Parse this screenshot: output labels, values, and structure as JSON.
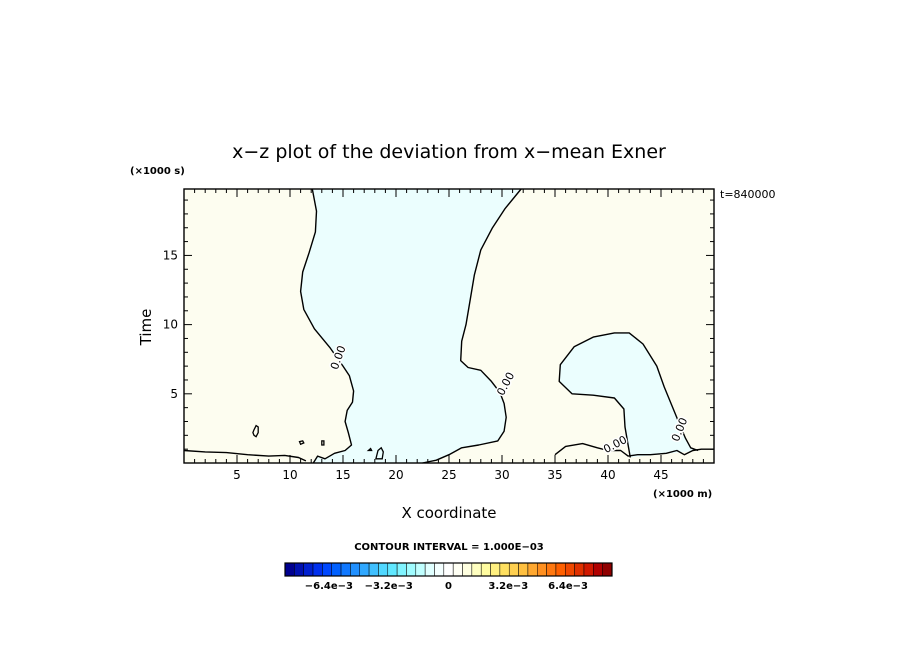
{
  "chart_data": {
    "type": "contour",
    "title": "x−z plot of the deviation from x−mean Exner",
    "xlabel": "X coordinate",
    "ylabel": "Time",
    "x_unit_label": "(×1000 m)",
    "y_unit_label": "(×1000 s)",
    "time_label": "t=840000",
    "contour_interval_label": "CONTOUR INTERVAL = 1.000E−03",
    "xlim": [
      0,
      50
    ],
    "ylim": [
      0,
      19.8
    ],
    "x_ticks": [
      5,
      10,
      15,
      20,
      25,
      30,
      35,
      40,
      45
    ],
    "y_ticks": [
      5,
      10,
      15
    ],
    "x_tick_labels": [
      "5",
      "10",
      "15",
      "20",
      "25",
      "30",
      "35",
      "40",
      "45"
    ],
    "y_tick_labels": [
      "5",
      "10",
      "15"
    ],
    "contour_level_label": "0.00",
    "contour_labels": [
      {
        "x": 14.6,
        "y": 7.6
      },
      {
        "x": 30.4,
        "y": 5.7
      },
      {
        "x": 40.7,
        "y": 1.3
      },
      {
        "x": 46.8,
        "y": 2.4
      }
    ],
    "contours": [
      [
        [
          0,
          0.9
        ],
        [
          2,
          0.8
        ],
        [
          4,
          0.75
        ],
        [
          6,
          0.6
        ],
        [
          8,
          0.5
        ],
        [
          9.5,
          0.55
        ],
        [
          10.8,
          0.4
        ],
        [
          11.5,
          0.15
        ]
      ],
      [
        [
          12.2,
          0
        ],
        [
          12.6,
          0.5
        ],
        [
          13.3,
          0.3
        ],
        [
          14.2,
          0.7
        ],
        [
          15.2,
          0.9
        ],
        [
          15.8,
          1.3
        ],
        [
          15.5,
          2.2
        ],
        [
          15.2,
          3.0
        ],
        [
          15.4,
          3.8
        ],
        [
          15.9,
          4.4
        ],
        [
          16.0,
          5.2
        ],
        [
          15.6,
          6.3
        ],
        [
          15.0,
          7.0
        ],
        [
          13.8,
          8.3
        ],
        [
          12.3,
          9.7
        ],
        [
          11.3,
          11.1
        ],
        [
          11.0,
          12.4
        ],
        [
          11.2,
          13.8
        ],
        [
          11.8,
          15.2
        ],
        [
          12.4,
          16.7
        ],
        [
          12.5,
          18.2
        ],
        [
          12.1,
          19.8
        ]
      ],
      [
        [
          31.8,
          19.8
        ],
        [
          30.3,
          18.4
        ],
        [
          29.1,
          17.0
        ],
        [
          28.0,
          15.4
        ],
        [
          27.4,
          13.6
        ],
        [
          27.0,
          11.8
        ],
        [
          26.6,
          10.0
        ],
        [
          26.2,
          8.8
        ],
        [
          26.1,
          7.4
        ],
        [
          26.8,
          6.9
        ],
        [
          28.0,
          6.7
        ],
        [
          29.0,
          5.9
        ],
        [
          29.8,
          5.1
        ],
        [
          30.2,
          4.3
        ],
        [
          30.4,
          3.3
        ],
        [
          30.2,
          2.3
        ],
        [
          29.6,
          1.6
        ],
        [
          27.8,
          1.3
        ],
        [
          26.2,
          1.1
        ],
        [
          25.0,
          0.6
        ],
        [
          23.8,
          0.2
        ],
        [
          22.5,
          0
        ]
      ],
      [
        [
          35.0,
          0.6
        ],
        [
          36.0,
          1.2
        ],
        [
          37.6,
          1.4
        ],
        [
          39.0,
          1.1
        ],
        [
          40.0,
          0.9
        ],
        [
          41.2,
          0.9
        ],
        [
          41.9,
          0.5
        ],
        [
          42.8,
          0.6
        ],
        [
          44.0,
          0.6
        ],
        [
          45.5,
          0.7
        ],
        [
          46.5,
          0.9
        ],
        [
          47.2,
          0.6
        ],
        [
          48.0,
          0.9
        ],
        [
          48.8,
          1.0
        ],
        [
          50.0,
          1.0
        ]
      ],
      [
        [
          42.1,
          0.4
        ],
        [
          41.9,
          1.3
        ],
        [
          41.6,
          2.6
        ],
        [
          41.5,
          3.9
        ],
        [
          40.6,
          4.7
        ],
        [
          38.6,
          4.9
        ],
        [
          36.6,
          5.0
        ],
        [
          35.4,
          5.9
        ],
        [
          35.5,
          7.1
        ],
        [
          36.8,
          8.4
        ],
        [
          38.6,
          9.1
        ],
        [
          40.6,
          9.4
        ],
        [
          42.0,
          9.4
        ],
        [
          43.3,
          8.6
        ],
        [
          44.6,
          7.0
        ],
        [
          45.3,
          5.5
        ],
        [
          46.0,
          4.2
        ],
        [
          46.7,
          2.9
        ],
        [
          47.3,
          1.8
        ],
        [
          47.8,
          1.1
        ],
        [
          48.5,
          0.9
        ]
      ]
    ],
    "closed_contours": [
      [
        [
          6.6,
          2.4
        ],
        [
          6.8,
          2.7
        ],
        [
          7.0,
          2.6
        ],
        [
          7.0,
          2.2
        ],
        [
          6.8,
          1.9
        ],
        [
          6.6,
          2.0
        ],
        [
          6.5,
          2.2
        ]
      ],
      [
        [
          10.9,
          1.55
        ],
        [
          11.2,
          1.6
        ],
        [
          11.3,
          1.45
        ],
        [
          11.0,
          1.35
        ]
      ],
      [
        [
          13.0,
          1.6
        ],
        [
          13.2,
          1.6
        ],
        [
          13.2,
          1.3
        ],
        [
          13.0,
          1.3
        ]
      ],
      [
        [
          18.1,
          0.3
        ],
        [
          18.3,
          0.9
        ],
        [
          18.6,
          1.1
        ],
        [
          18.8,
          0.8
        ],
        [
          18.7,
          0.3
        ]
      ],
      [
        [
          17.4,
          0.9
        ],
        [
          17.6,
          1.05
        ],
        [
          17.7,
          0.9
        ]
      ]
    ],
    "shading": {
      "positive_color": "#fdfdf0",
      "negative_color": "#ebfefe"
    },
    "colorbar": {
      "colors": [
        "#00008f",
        "#0010b0",
        "#0020d0",
        "#0030ee",
        "#0048ff",
        "#0060ff",
        "#1078ff",
        "#2090ff",
        "#30a8ff",
        "#40c0ff",
        "#50d8ff",
        "#60e8ff",
        "#80f4ff",
        "#a0fcff",
        "#c0ffff",
        "#e0ffff",
        "#f4ffff",
        "#ffffff",
        "#fffff4",
        "#ffffe0",
        "#ffffc0",
        "#fffca0",
        "#fff080",
        "#ffe060",
        "#ffd050",
        "#ffc040",
        "#ffa830",
        "#ff9020",
        "#ff7810",
        "#ff6000",
        "#f04800",
        "#e03000",
        "#d01800",
        "#b00000",
        "#8f0000"
      ],
      "tick_labels": [
        {
          "value": -6.4,
          "label": "−6.4e−3"
        },
        {
          "value": -3.2,
          "label": "−3.2e−3"
        },
        {
          "value": 0,
          "label": "0"
        },
        {
          "value": 3.2,
          "label": "3.2e−3"
        },
        {
          "value": 6.4,
          "label": "6.4e−3"
        }
      ],
      "range": [
        -8.75,
        8.75
      ]
    }
  }
}
